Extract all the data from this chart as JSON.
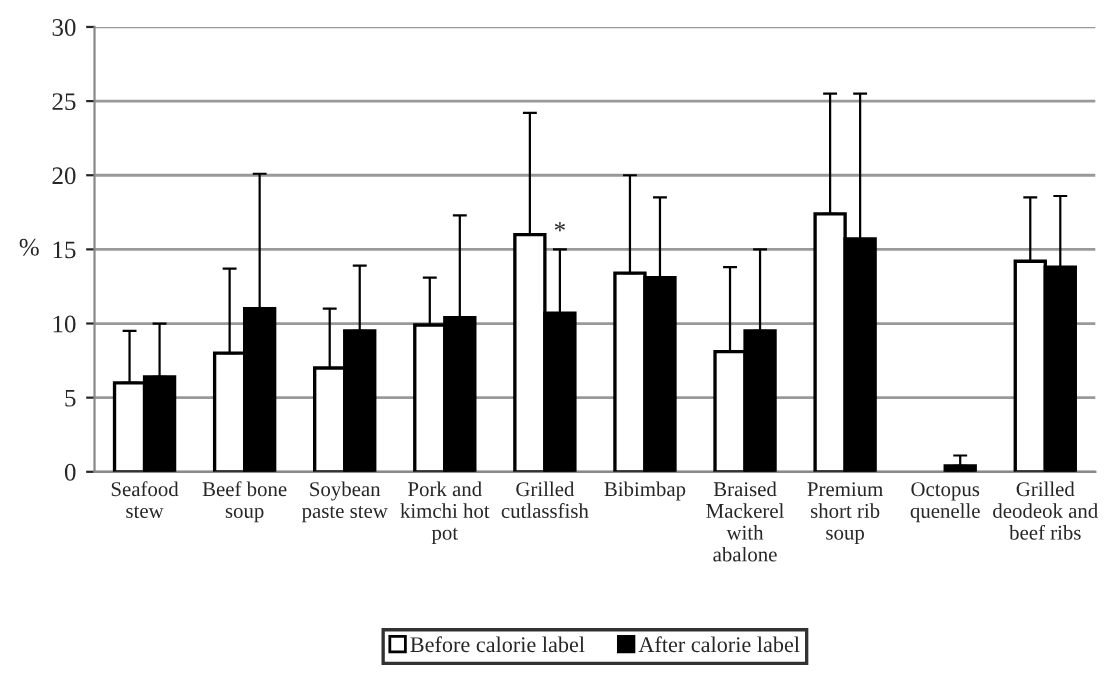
{
  "chart_data": {
    "type": "bar",
    "ylabel": "%",
    "categories": [
      "Seafood stew",
      "Beef bone soup",
      "Soybean paste stew",
      "Pork and kimchi hot pot",
      "Grilled cutlassfish",
      "Bibimbap",
      "Braised Mackerel with abalone",
      "Premium short rib soup",
      "Octopus quenelle",
      "Grilled deodeok and beef ribs"
    ],
    "series": [
      {
        "name": "Before calorie label",
        "color": "#ffffff",
        "values": [
          6,
          8,
          7,
          9.9,
          16,
          13.4,
          8.1,
          17.4,
          0,
          14.2
        ],
        "errors": [
          [
            6,
            9.5
          ],
          [
            8,
            13.7
          ],
          [
            7,
            11
          ],
          [
            9.9,
            13.1
          ],
          [
            16,
            24.2
          ],
          [
            13.4,
            20
          ],
          [
            8.1,
            13.8
          ],
          [
            17.4,
            25.5
          ],
          null,
          [
            14.2,
            18.5
          ]
        ]
      },
      {
        "name": "After calorie label",
        "color": "#000000",
        "values": [
          6.4,
          11,
          9.5,
          10.4,
          10.7,
          13.1,
          9.5,
          15.7,
          0.4,
          13.8
        ],
        "errors": [
          [
            6.4,
            10
          ],
          [
            11,
            20.1
          ],
          [
            9.5,
            13.9
          ],
          [
            10.4,
            17.3
          ],
          [
            10.7,
            15
          ],
          [
            13.1,
            18.5
          ],
          [
            9.5,
            15
          ],
          [
            15.7,
            25.5
          ],
          [
            0.4,
            1.1
          ],
          [
            13.8,
            18.6
          ]
        ]
      }
    ],
    "annotations": [
      {
        "text": "*",
        "x": "Grilled cutlassfish",
        "y": 15
      }
    ],
    "ylim": [
      0,
      30
    ],
    "yticks": [
      0,
      5,
      10,
      15,
      20,
      25,
      30
    ],
    "grid": "y",
    "legend": "bottom"
  }
}
